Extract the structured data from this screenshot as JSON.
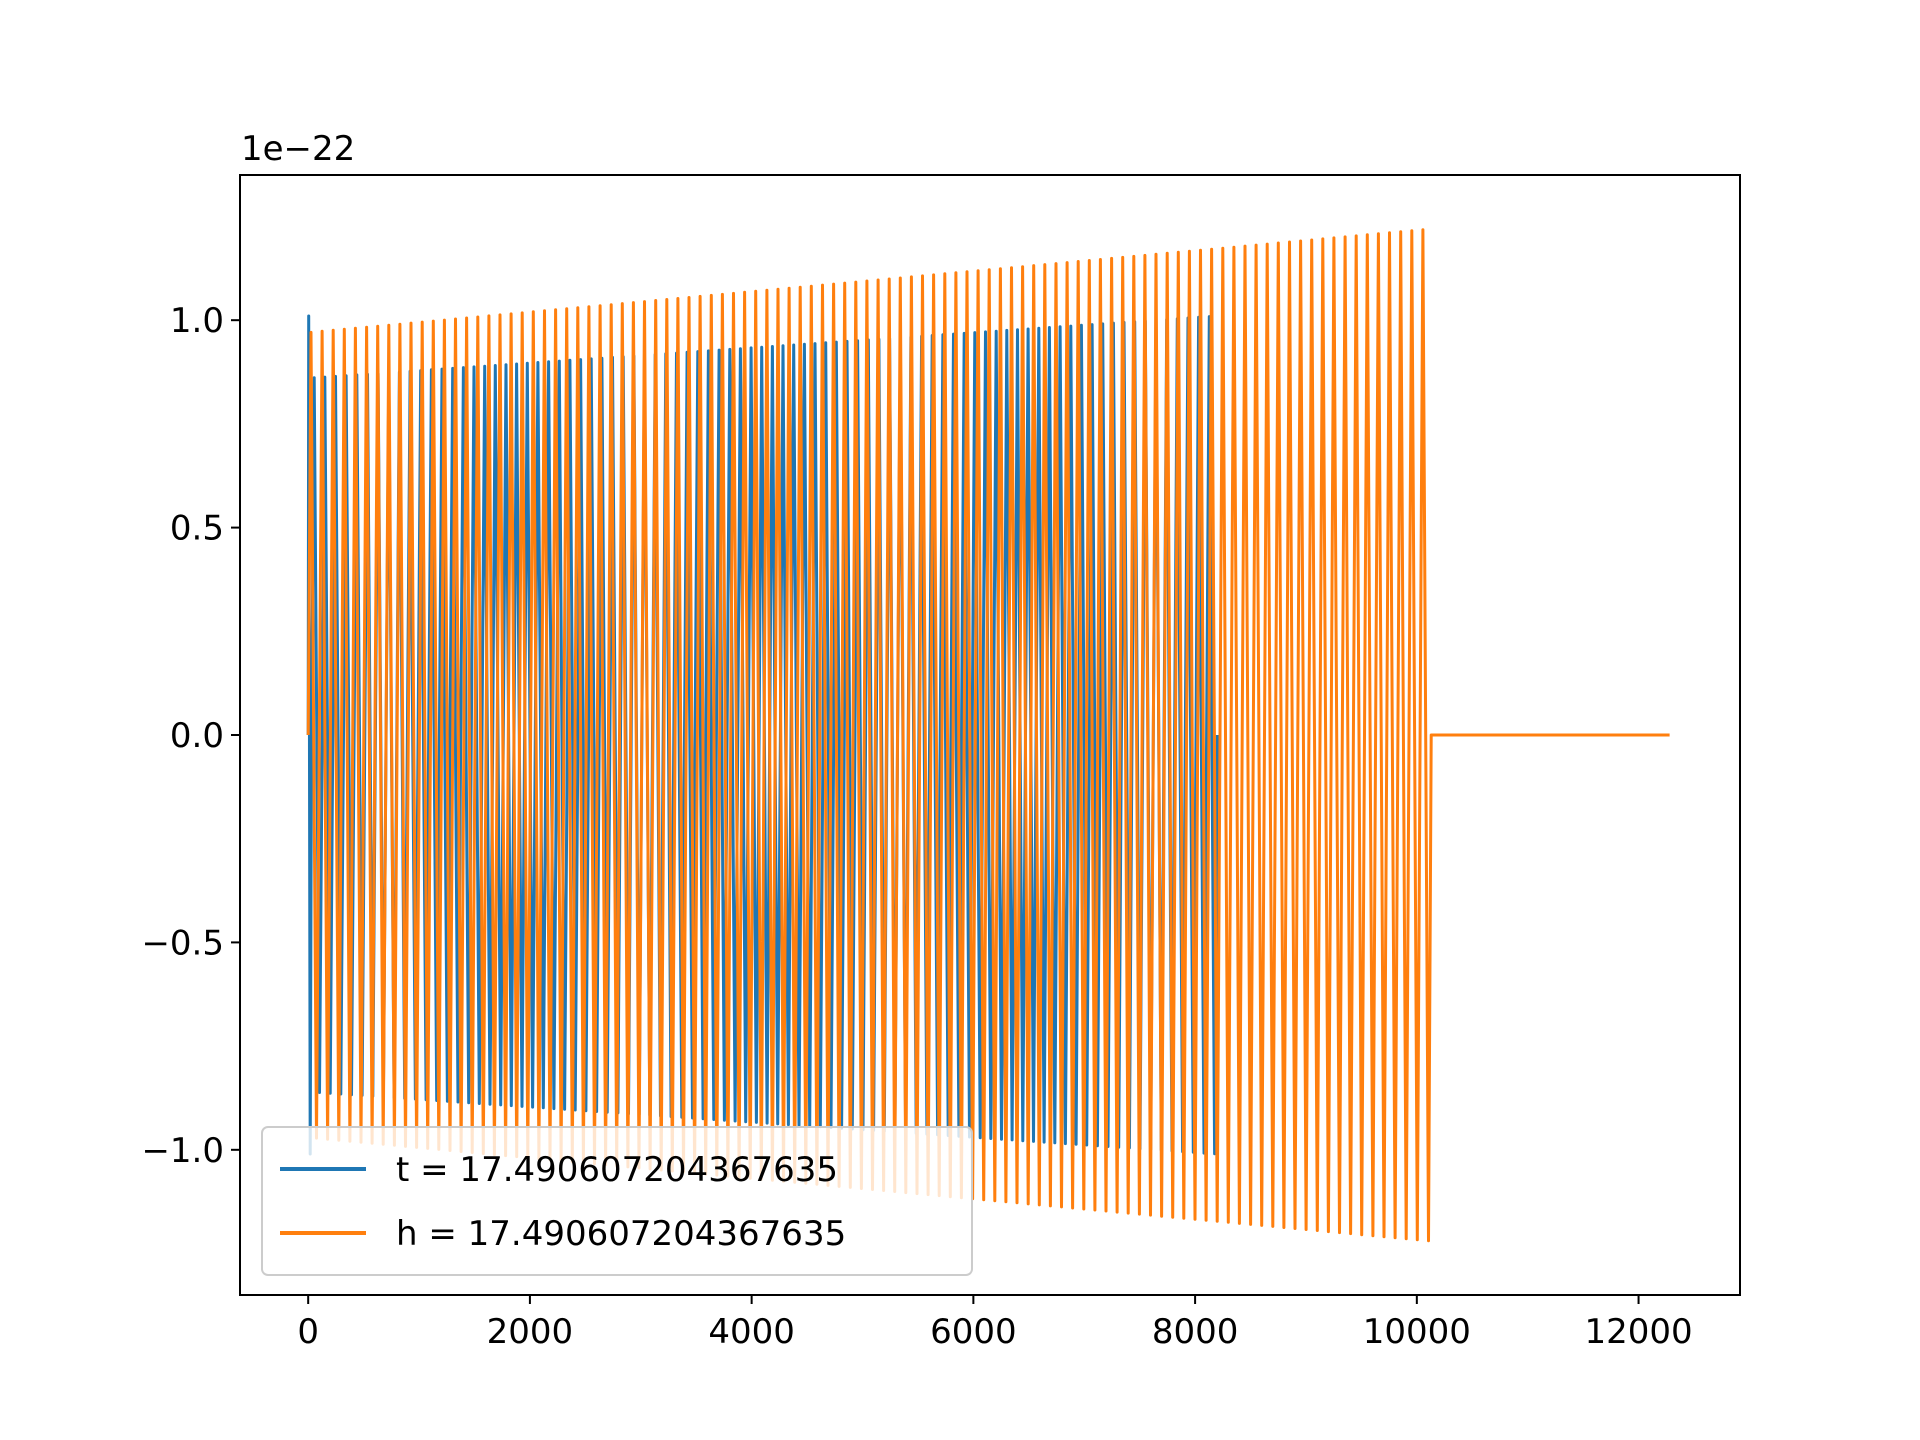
{
  "chart_data": {
    "type": "line",
    "title": "",
    "xlabel": "",
    "ylabel": "",
    "offset_text": "1e−22",
    "xlim": [
      -615,
      12915
    ],
    "ylim": [
      -1.35,
      1.35
    ],
    "x_ticks": [
      {
        "value": 0,
        "label": "0"
      },
      {
        "value": 2000,
        "label": "2000"
      },
      {
        "value": 4000,
        "label": "4000"
      },
      {
        "value": 6000,
        "label": "6000"
      },
      {
        "value": 8000,
        "label": "8000"
      },
      {
        "value": 10000,
        "label": "10000"
      },
      {
        "value": 12000,
        "label": "12000"
      }
    ],
    "y_ticks": [
      {
        "value": 1.0,
        "label": "1.0"
      },
      {
        "value": 0.5,
        "label": "0.5"
      },
      {
        "value": 0.0,
        "label": "0.0"
      },
      {
        "value": -0.5,
        "label": "−0.5"
      },
      {
        "value": -1.0,
        "label": "−1.0"
      }
    ],
    "grid": false,
    "legend_position": "lower-left",
    "series": [
      {
        "name": "t = 17.490607204367635",
        "color": "#1f77b4",
        "shape": "oscillation",
        "x_range": [
          0,
          8200
        ],
        "cycles": 85,
        "amplitude_start": 0.86,
        "amplitude_end": 1.01,
        "initial_spike": 1.01
      },
      {
        "name": "h = 17.490607204367635",
        "color": "#ff7f0e",
        "shape": "oscillation",
        "x_range": [
          0,
          10130
        ],
        "cycles": 101,
        "amplitude_start": 0.97,
        "amplitude_end": 1.22,
        "flat_x_range": [
          10130,
          12280
        ],
        "flat_value": 0.0
      }
    ]
  }
}
